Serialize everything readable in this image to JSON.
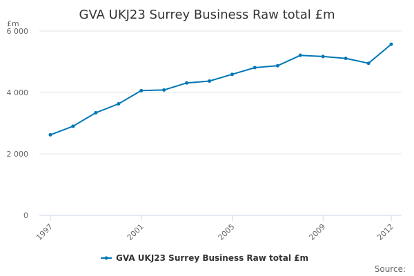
{
  "chart_data": {
    "type": "line",
    "title": "GVA UKJ23 Surrey Business Raw total £m",
    "xlabel": "",
    "ylabel": "£m",
    "x": [
      1997,
      1998,
      1999,
      2000,
      2001,
      2002,
      2003,
      2004,
      2005,
      2006,
      2007,
      2008,
      2009,
      2010,
      2011,
      2012
    ],
    "x_tick_labels": [
      "1997",
      "2001",
      "2005",
      "2009",
      "2012"
    ],
    "y_ticks": [
      0,
      2000,
      4000,
      6000
    ],
    "y_tick_labels": [
      "0",
      "2 000",
      "4 000",
      "6 000"
    ],
    "ylim": [
      0,
      6000
    ],
    "grid": true,
    "legend_position": "bottom-center",
    "series": [
      {
        "name": "GVA UKJ23 Surrey Business Raw total £m",
        "color": "#0077b6",
        "values": [
          2620,
          2900,
          3340,
          3630,
          4060,
          4080,
          4310,
          4370,
          4590,
          4810,
          4870,
          5210,
          5170,
          5110,
          4950,
          5570
        ]
      }
    ]
  },
  "source_label": "Source:"
}
